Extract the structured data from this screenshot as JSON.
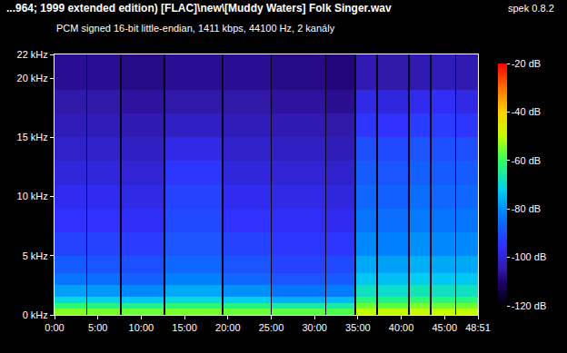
{
  "chart_data": {
    "type": "heatmap",
    "title": "...964; 1999 extended edition) [FLAC]\\new\\[Muddy Waters] Folk Singer.wav",
    "subtitle": "PCM signed 16-bit little-endian, 1411 kbps, 44100 Hz, 2 kanály",
    "annotations": [
      "spek 0.8.2"
    ],
    "grid": false,
    "xlim": [
      0,
      48.85
    ],
    "xticks": [
      {
        "value": 0,
        "label": "0:00"
      },
      {
        "value": 5,
        "label": "5:00"
      },
      {
        "value": 10,
        "label": "10:00"
      },
      {
        "value": 15,
        "label": "15:00"
      },
      {
        "value": 20,
        "label": "20:00"
      },
      {
        "value": 25,
        "label": "25:00"
      },
      {
        "value": 30,
        "label": "30:00"
      },
      {
        "value": 35,
        "label": "35:00"
      },
      {
        "value": 40,
        "label": "40:00"
      },
      {
        "value": 45,
        "label": "45:00"
      },
      {
        "value": 48.85,
        "label": "48:51"
      }
    ],
    "ylim": [
      0,
      22
    ],
    "yticks": [
      {
        "value": 0,
        "label": "0 kHz"
      },
      {
        "value": 5,
        "label": "5 kHz"
      },
      {
        "value": 10,
        "label": "10 kHz"
      },
      {
        "value": 15,
        "label": "15 kHz"
      },
      {
        "value": 20,
        "label": "20 kHz"
      },
      {
        "value": 22,
        "label": "22 kHz"
      }
    ],
    "colorbar": {
      "range": [
        -120,
        -20
      ],
      "ticks": [
        {
          "value": -20,
          "label": "-20 dB"
        },
        {
          "value": -40,
          "label": "-40 dB"
        },
        {
          "value": -60,
          "label": "-60 dB"
        },
        {
          "value": -80,
          "label": "-80 dB"
        },
        {
          "value": -100,
          "label": "-100 dB"
        },
        {
          "value": -120,
          "label": "-120 dB"
        }
      ]
    },
    "x_edges": [
      0,
      3.65,
      3.8,
      7.57,
      7.72,
      12.62,
      12.77,
      19.32,
      19.47,
      24.92,
      25.07,
      31.22,
      31.37,
      34.62,
      34.77,
      37.12,
      37.27,
      40.82,
      40.97,
      43.32,
      43.47,
      46.22,
      46.37,
      48.85
    ],
    "y_edges": [
      0,
      0.5,
      1,
      1.5,
      2.5,
      3.5,
      5,
      7,
      9,
      11,
      13,
      15,
      17,
      19,
      22
    ],
    "cells": [
      [
        -54,
        -118,
        -55,
        -118,
        -56,
        -118,
        -55,
        -118,
        -56,
        -118,
        -57,
        -118,
        -58,
        -118,
        -50,
        -118,
        -50,
        -118,
        -49,
        -118,
        -50,
        -118,
        -50
      ],
      [
        -62,
        -118,
        -63,
        -118,
        -64,
        -118,
        -62,
        -118,
        -63,
        -118,
        -66,
        -118,
        -66,
        -118,
        -56,
        -118,
        -57,
        -118,
        -55,
        -118,
        -56,
        -118,
        -56
      ],
      [
        -70,
        -118,
        -71,
        -118,
        -73,
        -118,
        -70,
        -118,
        -72,
        -118,
        -76,
        -118,
        -75,
        -118,
        -62,
        -118,
        -63,
        -118,
        -61,
        -118,
        -62,
        -118,
        -62
      ],
      [
        -78,
        -118,
        -79,
        -118,
        -81,
        -118,
        -77,
        -118,
        -80,
        -118,
        -84,
        -118,
        -83,
        -118,
        -68,
        -118,
        -69,
        -118,
        -67,
        -118,
        -68,
        -118,
        -68
      ],
      [
        -84,
        -118,
        -85,
        -118,
        -87,
        -118,
        -82,
        -118,
        -86,
        -118,
        -89,
        -118,
        -88,
        -118,
        -73,
        -118,
        -74,
        -118,
        -72,
        -118,
        -73,
        -118,
        -73
      ],
      [
        -88,
        -118,
        -89,
        -118,
        -90,
        -118,
        -86,
        -118,
        -89,
        -118,
        -92,
        -118,
        -91,
        -118,
        -77,
        -118,
        -78,
        -118,
        -76,
        -118,
        -77,
        -118,
        -77
      ],
      [
        -92,
        -118,
        -92,
        -118,
        -93,
        -118,
        -89,
        -118,
        -92,
        -118,
        -94,
        -118,
        -94,
        -118,
        -81,
        -118,
        -82,
        -118,
        -80,
        -118,
        -81,
        -118,
        -81
      ],
      [
        -95,
        -118,
        -95,
        -118,
        -96,
        -118,
        -91,
        -118,
        -95,
        -118,
        -96,
        -118,
        -97,
        -118,
        -84,
        -118,
        -85,
        -118,
        -83,
        -118,
        -84,
        -118,
        -84
      ],
      [
        -97,
        -118,
        -97,
        -118,
        -98,
        -118,
        -92,
        -118,
        -97,
        -118,
        -98,
        -118,
        -99,
        -118,
        -86,
        -118,
        -87,
        -118,
        -85,
        -118,
        -86,
        -118,
        -86
      ],
      [
        -99,
        -118,
        -99,
        -118,
        -100,
        -118,
        -94,
        -118,
        -99,
        -118,
        -100,
        -118,
        -101,
        -118,
        -88,
        -118,
        -89,
        -118,
        -87,
        -118,
        -88,
        -118,
        -88
      ],
      [
        -101,
        -118,
        -101,
        -118,
        -102,
        -118,
        -98,
        -118,
        -101,
        -118,
        -102,
        -118,
        -103,
        -118,
        -90,
        -118,
        -91,
        -118,
        -89,
        -118,
        -90,
        -118,
        -90
      ],
      [
        -103,
        -118,
        -103,
        -118,
        -104,
        -118,
        -102,
        -118,
        -103,
        -118,
        -104,
        -118,
        -105,
        -118,
        -94,
        -118,
        -95,
        -118,
        -93,
        -118,
        -93,
        -118,
        -94
      ],
      [
        -105,
        -118,
        -105,
        -118,
        -106,
        -118,
        -105,
        -118,
        -105,
        -118,
        -106,
        -118,
        -107,
        -118,
        -98,
        -118,
        -99,
        -118,
        -97,
        -118,
        -96,
        -118,
        -98
      ],
      [
        -107,
        -118,
        -107,
        -118,
        -108,
        -118,
        -107,
        -118,
        -107,
        -118,
        -108,
        -118,
        -109,
        -118,
        -104,
        -118,
        -105,
        -118,
        -104,
        -118,
        -103,
        -118,
        -104
      ]
    ]
  }
}
